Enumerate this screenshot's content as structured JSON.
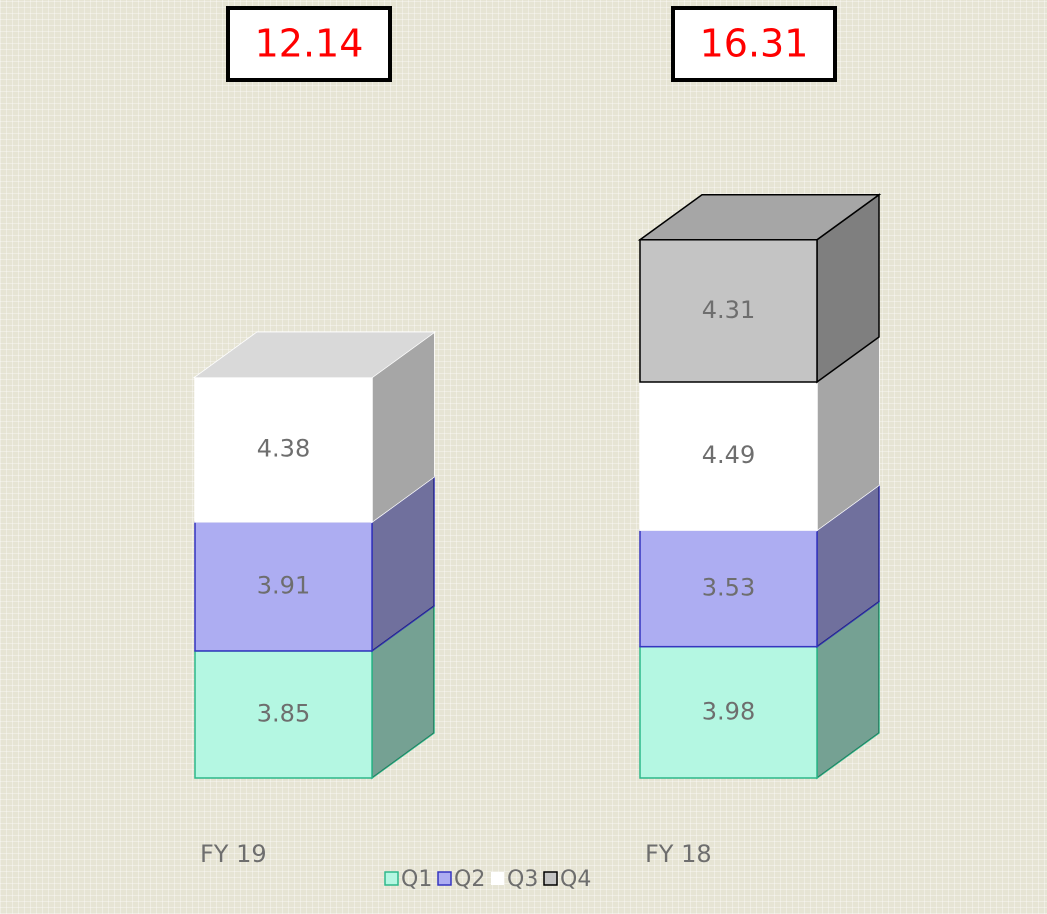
{
  "chart_data": {
    "type": "bar3d_stacked",
    "categories": [
      "FY 19",
      "FY 18"
    ],
    "series": [
      {
        "name": "Q1",
        "color": "#b4f7e2",
        "edge": "#2db88a",
        "values": [
          3.85,
          3.98
        ]
      },
      {
        "name": "Q2",
        "color": "#adadf2",
        "edge": "#3535c0",
        "values": [
          3.91,
          3.53
        ]
      },
      {
        "name": "Q3",
        "color": "#ffffff",
        "edge": "#ffffff",
        "values": [
          4.38,
          4.49
        ]
      },
      {
        "name": "Q4",
        "color": "#c4c4c4",
        "edge": "#000000",
        "values": [
          null,
          4.31
        ]
      }
    ],
    "totals": [
      12.14,
      16.31
    ],
    "ylim": [
      0,
      18
    ]
  }
}
